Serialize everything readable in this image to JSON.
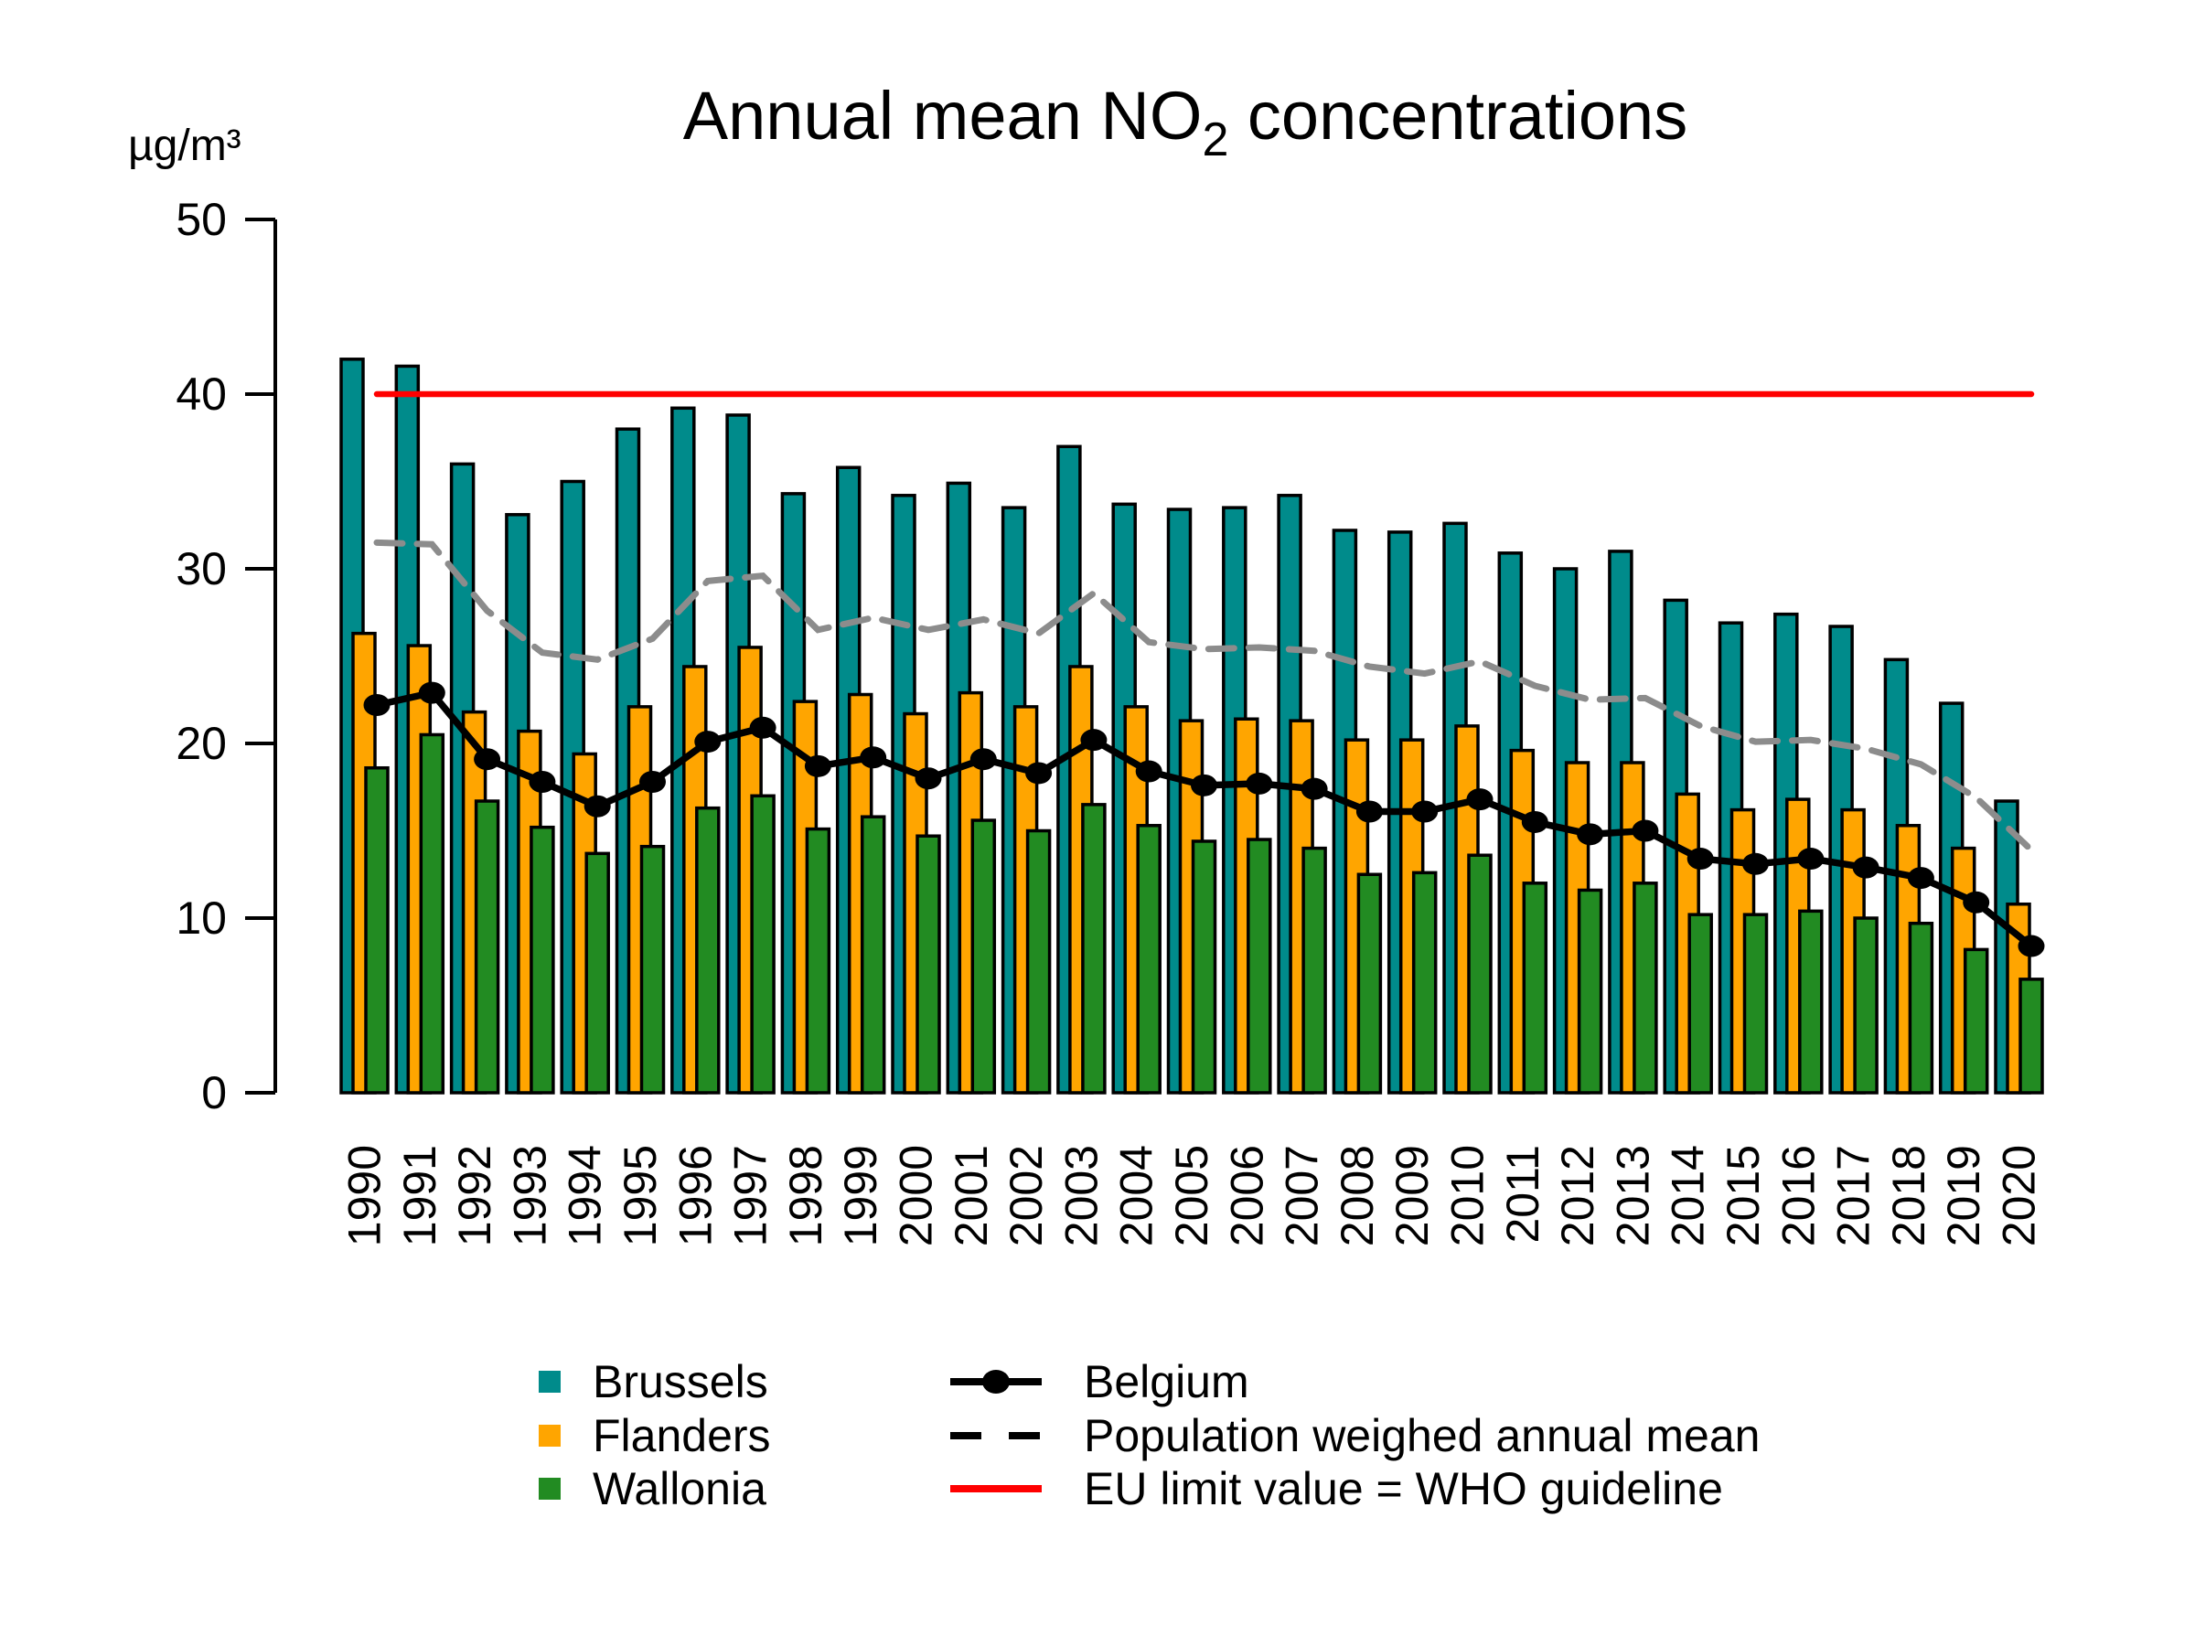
{
  "title": {
    "prefix": "Annual mean NO",
    "subscript": "2",
    "suffix": " concentrations"
  },
  "y_axis": {
    "unit_label": "µg/m³",
    "ticks": [
      0,
      10,
      20,
      30,
      40,
      50
    ],
    "range": [
      0,
      50
    ]
  },
  "legend": {
    "population_symbol_color": "#000000",
    "belgium_symbol_color": "#000000"
  },
  "chart_data": {
    "type": "bar",
    "title": "Annual mean NO2 concentrations",
    "ylabel": "µg/m³",
    "ylim": [
      0,
      50
    ],
    "grid": false,
    "legend_position": "bottom",
    "categories": [
      "1990",
      "1991",
      "1992",
      "1993",
      "1994",
      "1995",
      "1996",
      "1997",
      "1998",
      "1999",
      "2000",
      "2001",
      "2002",
      "2003",
      "2004",
      "2005",
      "2006",
      "2007",
      "2008",
      "2009",
      "2010",
      "2011",
      "2012",
      "2013",
      "2014",
      "2015",
      "2016",
      "2017",
      "2018",
      "2019",
      "2020"
    ],
    "series": [
      {
        "name": "Brussels",
        "type": "bar",
        "color": "#008B8B",
        "values": [
          42.0,
          41.6,
          36.0,
          33.1,
          35.0,
          38.0,
          39.2,
          38.8,
          34.3,
          35.8,
          34.2,
          34.9,
          33.5,
          37.0,
          33.7,
          33.4,
          33.5,
          34.2,
          32.2,
          32.1,
          32.6,
          30.9,
          30.0,
          31.0,
          28.2,
          26.9,
          27.4,
          26.7,
          24.8,
          22.3,
          16.7
        ]
      },
      {
        "name": "Flanders",
        "type": "bar",
        "color": "#FFA500",
        "values": [
          26.3,
          25.6,
          21.8,
          20.7,
          19.4,
          22.1,
          24.4,
          25.5,
          22.4,
          22.8,
          21.7,
          22.9,
          22.1,
          24.4,
          22.1,
          21.3,
          21.4,
          21.3,
          20.2,
          20.2,
          21.0,
          19.6,
          18.9,
          18.9,
          17.1,
          16.2,
          16.8,
          16.2,
          15.3,
          14.0,
          10.8
        ]
      },
      {
        "name": "Wallonia",
        "type": "bar",
        "color": "#228B22",
        "values": [
          18.6,
          20.5,
          16.7,
          15.2,
          13.7,
          14.1,
          16.3,
          17.0,
          15.1,
          15.8,
          14.7,
          15.6,
          15.0,
          16.5,
          15.3,
          14.4,
          14.5,
          14.0,
          12.5,
          12.6,
          13.6,
          12.0,
          11.6,
          12.0,
          10.2,
          10.2,
          10.4,
          10.0,
          9.7,
          8.2,
          6.5
        ]
      },
      {
        "name": "Belgium",
        "type": "line-with-points",
        "color": "#000000",
        "values": [
          22.2,
          22.9,
          19.1,
          17.8,
          16.4,
          17.8,
          20.1,
          20.9,
          18.7,
          19.2,
          18.0,
          19.1,
          18.3,
          20.2,
          18.4,
          17.6,
          17.7,
          17.4,
          16.1,
          16.1,
          16.8,
          15.5,
          14.8,
          15.0,
          13.4,
          13.1,
          13.4,
          12.9,
          12.3,
          10.9,
          8.4
        ]
      },
      {
        "name": "Population weighed annual mean",
        "type": "dashed-line",
        "color": "#8C8C8C",
        "values": [
          31.5,
          31.4,
          27.6,
          25.2,
          24.8,
          26.0,
          29.3,
          29.6,
          26.5,
          27.2,
          26.5,
          27.1,
          26.3,
          28.6,
          25.8,
          25.4,
          25.5,
          25.3,
          24.4,
          24.0,
          24.7,
          23.3,
          22.5,
          22.6,
          21.0,
          20.1,
          20.2,
          19.7,
          18.8,
          16.9,
          13.9
        ]
      },
      {
        "name": "EU limit value = WHO guideline",
        "type": "hline",
        "color": "#FF0000",
        "value": 40
      }
    ]
  }
}
